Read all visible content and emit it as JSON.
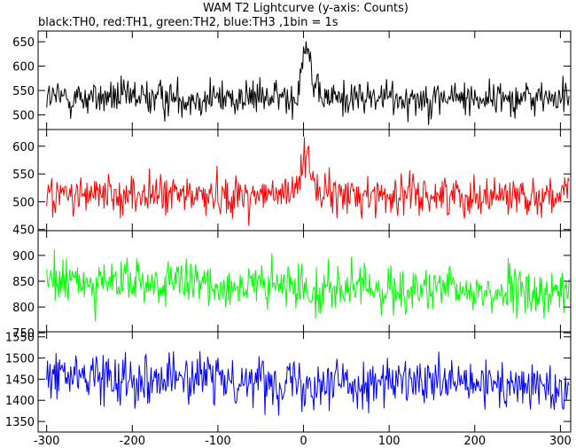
{
  "chart_data": {
    "type": "line",
    "title": "WAM T2 Lightcurve (y-axis: Counts)",
    "subtitle": "black:TH0, red:TH1, green:TH2, blue:TH3 ,1bin = 1s",
    "xlim": [
      -310,
      312
    ],
    "x_ticks": [
      -300,
      -200,
      -100,
      0,
      100,
      200,
      300
    ],
    "bin_seconds": 1,
    "panels": [
      {
        "name": "TH0",
        "color": "#000000",
        "ylim": [
          470,
          672
        ],
        "y_ticks": [
          500,
          550,
          600,
          650
        ],
        "baseline": 535,
        "noise_sd": 25,
        "peak": {
          "x": 3,
          "height": 120,
          "width": 5
        }
      },
      {
        "name": "TH1",
        "color": "#ff0000",
        "ylim": [
          448,
          630
        ],
        "y_ticks": [
          450,
          500,
          550,
          600
        ],
        "baseline": 512,
        "noise_sd": 24,
        "peak": {
          "x": 3,
          "height": 80,
          "width": 6
        }
      },
      {
        "name": "TH2",
        "color": "#00ff00",
        "ylim": [
          752,
          948
        ],
        "y_ticks": [
          750,
          800,
          850,
          900
        ],
        "baseline": 850,
        "noise_sd": 30,
        "trend_end": 825
      },
      {
        "name": "TH3",
        "color": "#0000ff",
        "ylim": [
          1325,
          1562
        ],
        "y_ticks": [
          1350,
          1400,
          1450,
          1500,
          1550
        ],
        "baseline": 1460,
        "noise_sd": 38,
        "trend_end": 1430
      }
    ]
  }
}
